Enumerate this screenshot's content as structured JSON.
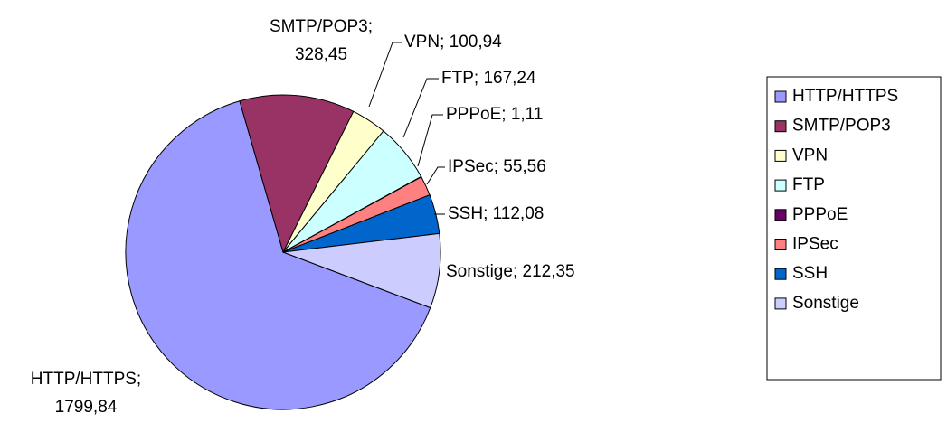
{
  "chart_data": {
    "type": "pie",
    "categories": [
      "HTTP/HTTPS",
      "SMTP/POP3",
      "VPN",
      "FTP",
      "PPPoE",
      "IPSec",
      "SSH",
      "Sonstige"
    ],
    "values": [
      1799.84,
      328.45,
      100.94,
      167.24,
      1.11,
      55.56,
      112.08,
      212.35
    ],
    "value_labels": [
      "HTTP/HTTPS;\n1799,84",
      "SMTP/POP3;\n328,45",
      "VPN; 100,94",
      "FTP; 167,24",
      "PPPoE; 1,11",
      "IPSec; 55,56",
      "SSH; 112,08",
      "Sonstige; 212,35"
    ],
    "colors": [
      "#9999ff",
      "#993366",
      "#ffffcc",
      "#ccffff",
      "#660066",
      "#ff8080",
      "#0066cc",
      "#ccccff"
    ],
    "legend": "right"
  }
}
